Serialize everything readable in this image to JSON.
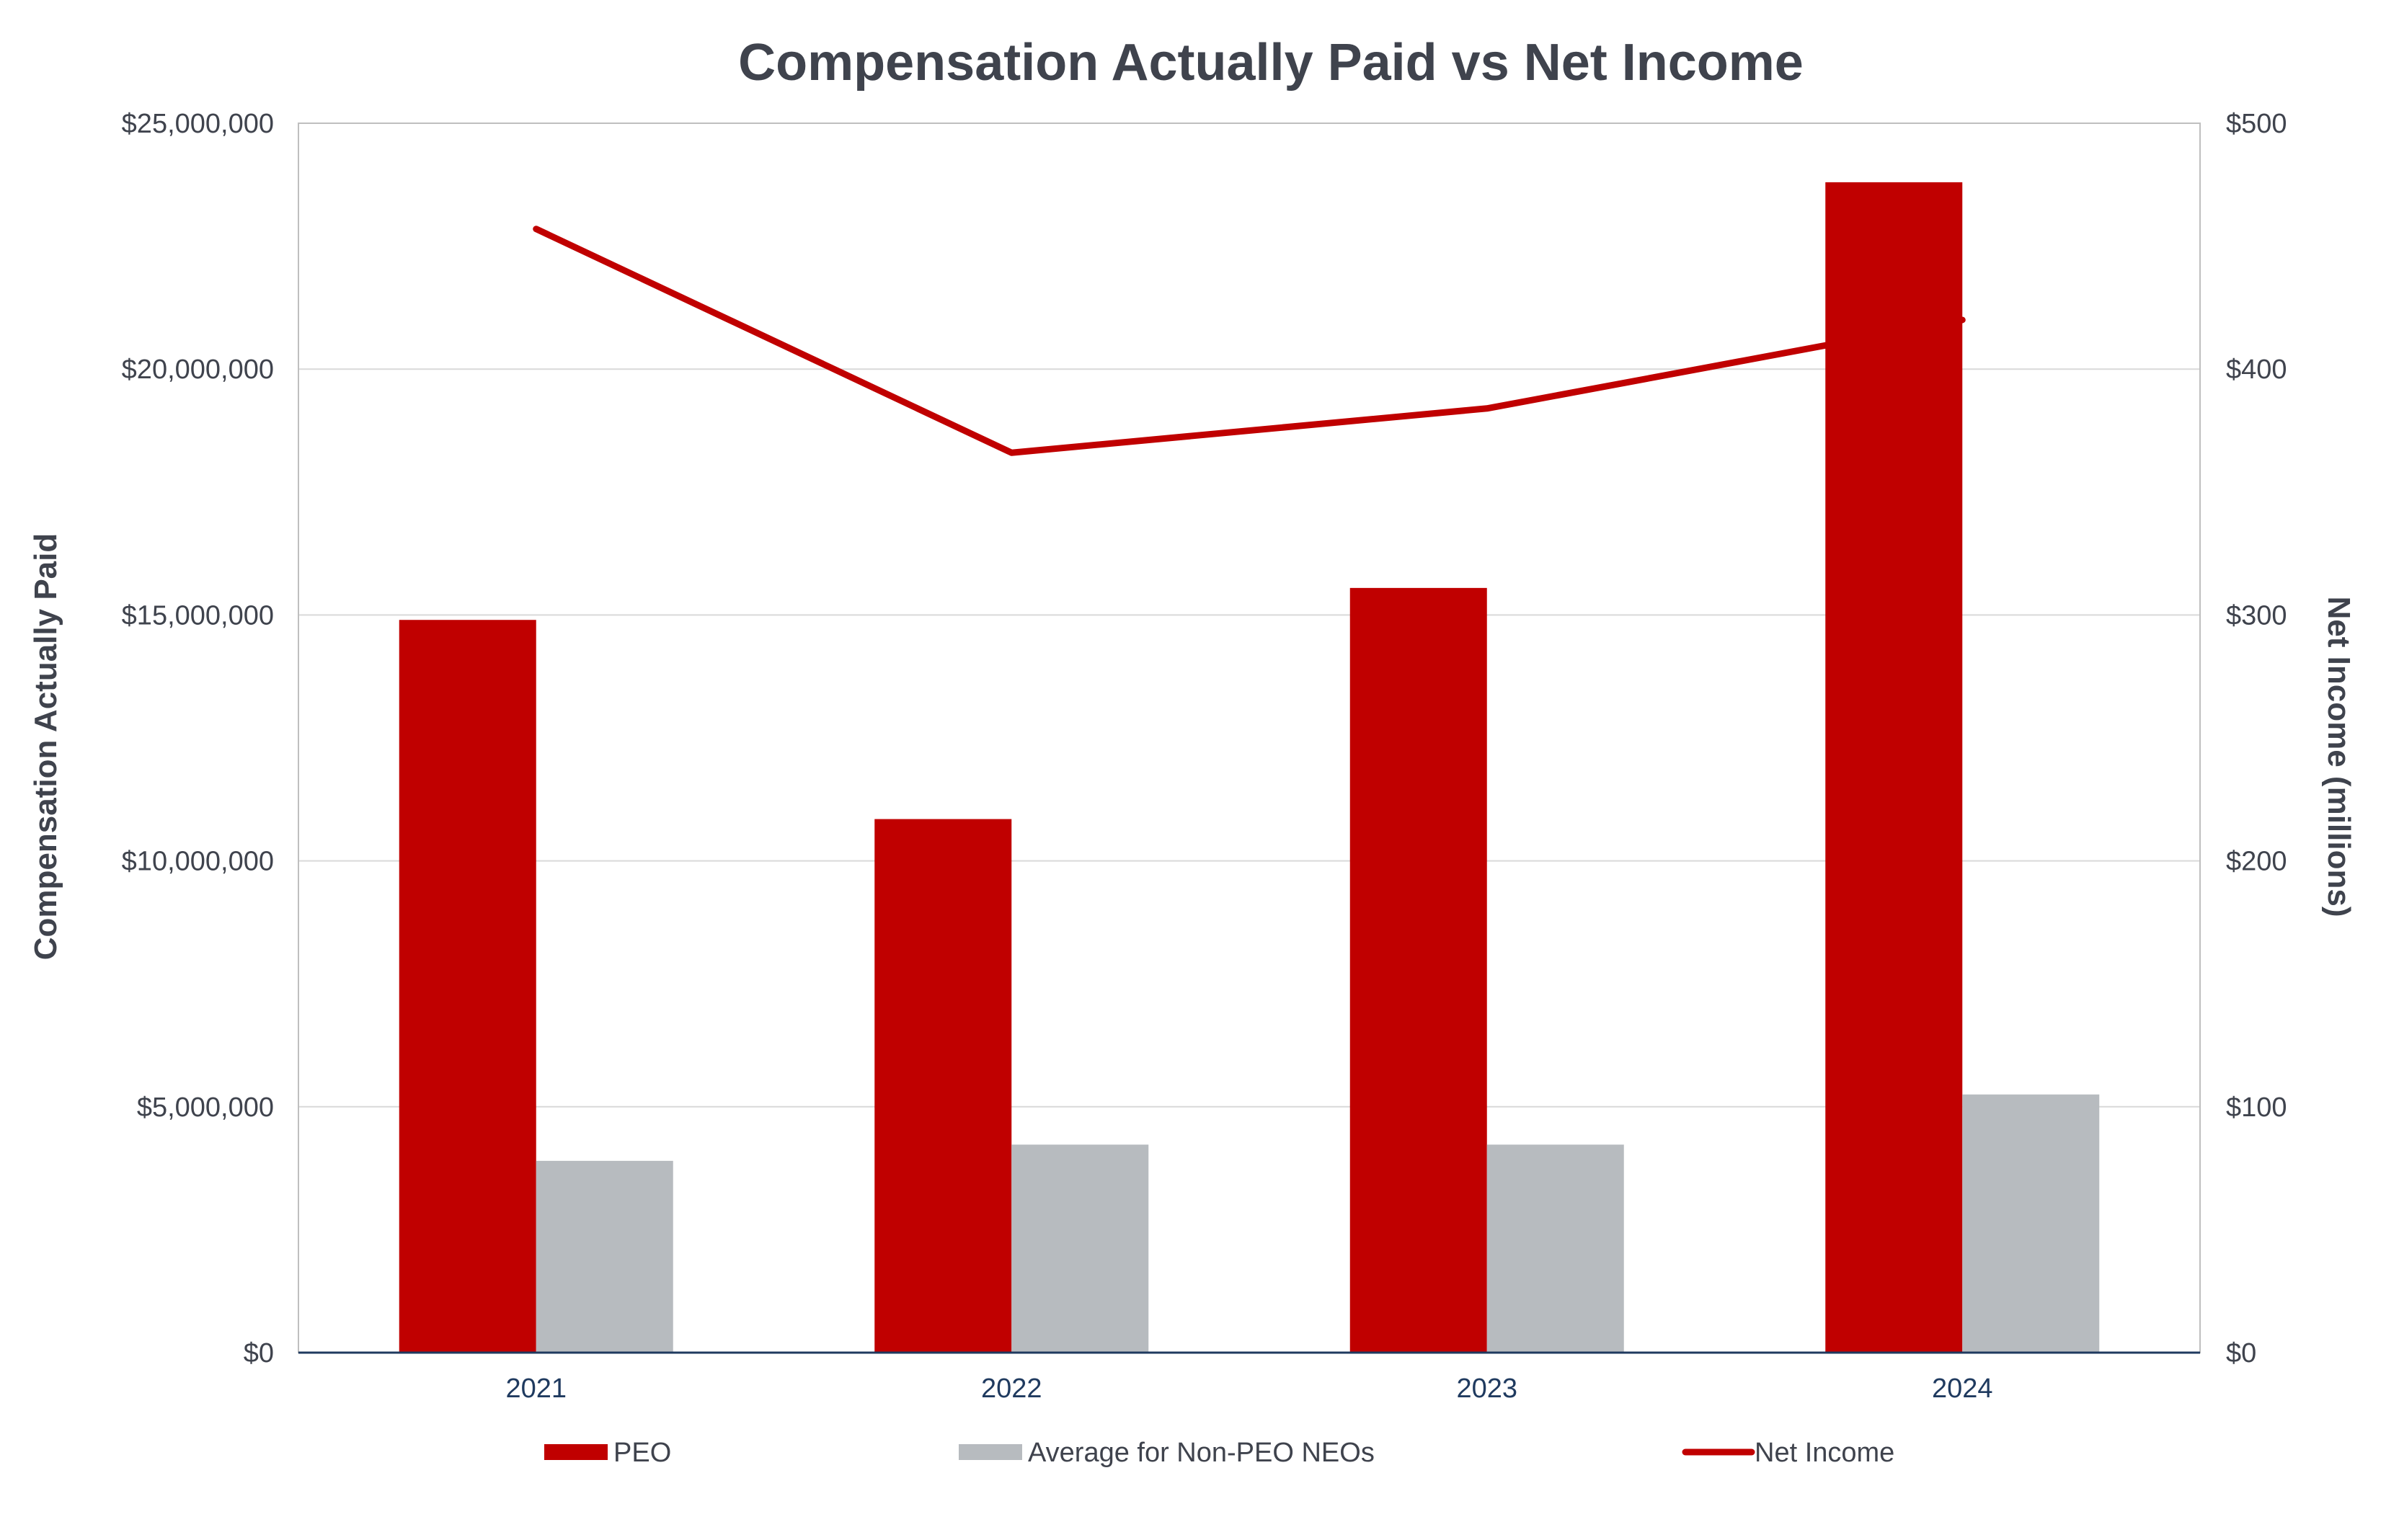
{
  "chart_data": {
    "type": "bar",
    "title": "Compensation Actually Paid vs Net Income",
    "xlabel": "",
    "ylabel": "Compensation Actually Paid",
    "y2label": "Net Income (millions)",
    "categories": [
      "2021",
      "2022",
      "2023",
      "2024"
    ],
    "ylim": [
      0,
      25000000
    ],
    "y2lim": [
      0,
      500
    ],
    "yticks": [
      "$0",
      "$5,000,000",
      "$10,000,000",
      "$15,000,000",
      "$20,000,000",
      "$25,000,000"
    ],
    "y2ticks": [
      "$0",
      "$100",
      "$200",
      "$300",
      "$400",
      "$500"
    ],
    "ytick_values": [
      0,
      5000000,
      10000000,
      15000000,
      20000000,
      25000000
    ],
    "y2tick_values": [
      0,
      100,
      200,
      300,
      400,
      500
    ],
    "grid": true,
    "legend_position": "bottom",
    "series": [
      {
        "name": "PEO",
        "type": "bar",
        "axis": "left",
        "color": "#c00000",
        "values": [
          14900000,
          10850000,
          15550000,
          23800000
        ]
      },
      {
        "name": "Average for Non-PEO NEOs",
        "type": "bar",
        "axis": "left",
        "color": "#b7bbbf",
        "values": [
          3900000,
          4230000,
          4230000,
          5250000
        ]
      },
      {
        "name": "Net Income",
        "type": "line",
        "axis": "right",
        "color": "#c00000",
        "values": [
          457,
          366,
          384,
          420
        ]
      }
    ]
  }
}
